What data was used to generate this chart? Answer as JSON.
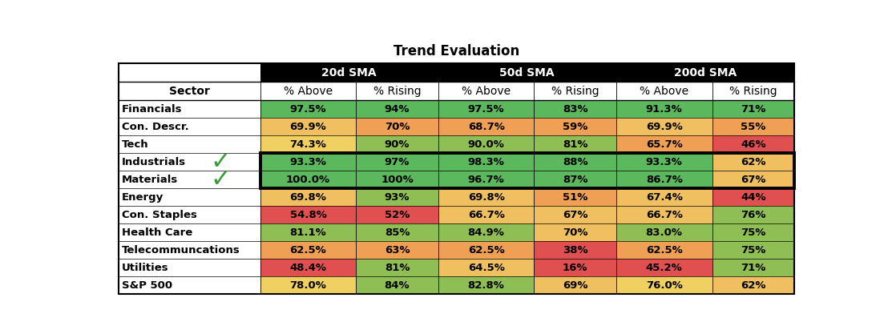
{
  "title": "Trend Evaluation",
  "sma_headers": [
    "20d SMA",
    "50d SMA",
    "200d SMA"
  ],
  "col_headers": [
    "Sector",
    "% Above",
    "% Rising",
    "% Above",
    "% Rising",
    "% Above",
    "% Rising"
  ],
  "sectors": [
    "Financials",
    "Con. Descr.",
    "Tech",
    "Industrials",
    "Materials",
    "Energy",
    "Con. Staples",
    "Health Care",
    "Telecommuncations",
    "Utilities",
    "S&P 500"
  ],
  "data": [
    [
      "97.5%",
      "94%",
      "97.5%",
      "83%",
      "91.3%",
      "71%"
    ],
    [
      "69.9%",
      "70%",
      "68.7%",
      "59%",
      "69.9%",
      "55%"
    ],
    [
      "74.3%",
      "90%",
      "90.0%",
      "81%",
      "65.7%",
      "46%"
    ],
    [
      "93.3%",
      "97%",
      "98.3%",
      "88%",
      "93.3%",
      "62%"
    ],
    [
      "100.0%",
      "100%",
      "96.7%",
      "87%",
      "86.7%",
      "67%"
    ],
    [
      "69.8%",
      "93%",
      "69.8%",
      "51%",
      "67.4%",
      "44%"
    ],
    [
      "54.8%",
      "52%",
      "66.7%",
      "67%",
      "66.7%",
      "76%"
    ],
    [
      "81.1%",
      "85%",
      "84.9%",
      "70%",
      "83.0%",
      "75%"
    ],
    [
      "62.5%",
      "63%",
      "62.5%",
      "38%",
      "62.5%",
      "75%"
    ],
    [
      "48.4%",
      "81%",
      "64.5%",
      "16%",
      "45.2%",
      "71%"
    ],
    [
      "78.0%",
      "84%",
      "82.8%",
      "69%",
      "76.0%",
      "62%"
    ]
  ],
  "cell_colors": [
    [
      "#5cb85c",
      "#5cb85c",
      "#5cb85c",
      "#5cb85c",
      "#5cb85c",
      "#5cb85c"
    ],
    [
      "#f0c060",
      "#f0a055",
      "#f0a055",
      "#f0a055",
      "#f0c060",
      "#f0a055"
    ],
    [
      "#f0d060",
      "#8fbe55",
      "#8fbe55",
      "#8fbe55",
      "#f0a055",
      "#e05050"
    ],
    [
      "#5cb85c",
      "#5cb85c",
      "#5cb85c",
      "#5cb85c",
      "#5cb85c",
      "#f0c060"
    ],
    [
      "#5cb85c",
      "#5cb85c",
      "#5cb85c",
      "#5cb85c",
      "#5cb85c",
      "#f0c060"
    ],
    [
      "#f0c060",
      "#8fbe55",
      "#f0c060",
      "#f0a055",
      "#f0c060",
      "#e05050"
    ],
    [
      "#e05050",
      "#e05050",
      "#f0c060",
      "#f0c060",
      "#f0c060",
      "#8fbe55"
    ],
    [
      "#8fbe55",
      "#8fbe55",
      "#8fbe55",
      "#f0c060",
      "#8fbe55",
      "#8fbe55"
    ],
    [
      "#f0a055",
      "#f0a055",
      "#f0a055",
      "#e05050",
      "#f0a055",
      "#8fbe55"
    ],
    [
      "#e05050",
      "#8fbe55",
      "#f0c060",
      "#e05050",
      "#e05050",
      "#8fbe55"
    ],
    [
      "#f0d060",
      "#8fbe55",
      "#8fbe55",
      "#f0c060",
      "#f0d060",
      "#f0c060"
    ]
  ],
  "highlight_rows": [
    3,
    4
  ],
  "background_color": "#ffffff",
  "header_bg": "#000000",
  "header_fg": "#ffffff",
  "title_fontsize": 12,
  "header_fontsize": 10,
  "cell_fontsize": 9.5,
  "sector_fontsize": 9.5
}
